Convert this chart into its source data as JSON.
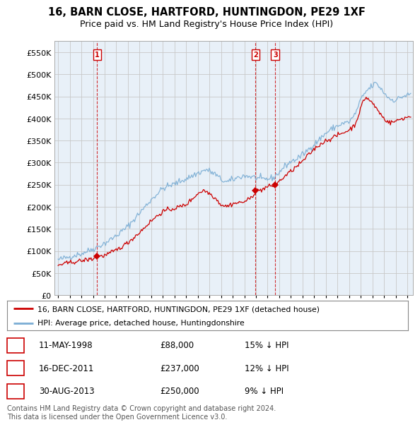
{
  "title": "16, BARN CLOSE, HARTFORD, HUNTINGDON, PE29 1XF",
  "subtitle": "Price paid vs. HM Land Registry's House Price Index (HPI)",
  "ylim": [
    0,
    575000
  ],
  "yticks": [
    0,
    50000,
    100000,
    150000,
    200000,
    250000,
    300000,
    350000,
    400000,
    450000,
    500000,
    550000
  ],
  "xlim_start": 1994.7,
  "xlim_end": 2025.5,
  "legend_line1": "16, BARN CLOSE, HARTFORD, HUNTINGDON, PE29 1XF (detached house)",
  "legend_line2": "HPI: Average price, detached house, Huntingdonshire",
  "color_red": "#cc0000",
  "color_blue": "#7aadd4",
  "color_bg_chart": "#e8f0f8",
  "transactions": [
    {
      "num": 1,
      "date_x": 1998.36,
      "price": 88000,
      "label": "11-MAY-1998",
      "amount": "£88,000",
      "pct": "15% ↓ HPI"
    },
    {
      "num": 2,
      "date_x": 2011.96,
      "price": 237000,
      "label": "16-DEC-2011",
      "amount": "£237,000",
      "pct": "12% ↓ HPI"
    },
    {
      "num": 3,
      "date_x": 2013.66,
      "price": 250000,
      "label": "30-AUG-2013",
      "amount": "£250,000",
      "pct": "9% ↓ HPI"
    }
  ],
  "footer": "Contains HM Land Registry data © Crown copyright and database right 2024.\nThis data is licensed under the Open Government Licence v3.0.",
  "bg_color": "#ffffff",
  "grid_color": "#c8c8c8"
}
